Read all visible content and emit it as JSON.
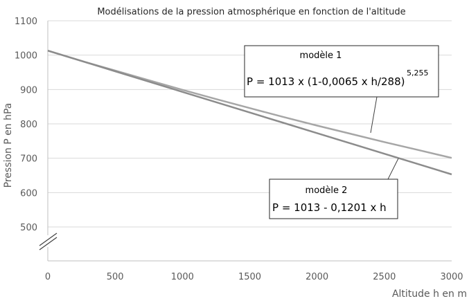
{
  "chart_data": {
    "type": "line",
    "title": "Modélisations de la pression atmosphérique en fonction de l'altitude",
    "xlabel": "Altitude h en m",
    "ylabel": "Pression P en hPa",
    "xlim": [
      0,
      3000
    ],
    "ylim": [
      450,
      1100
    ],
    "x_ticks": [
      0,
      500,
      1000,
      1500,
      2000,
      2500,
      3000
    ],
    "y_ticks": [
      500,
      600,
      700,
      800,
      900,
      1000,
      1100
    ],
    "grid": "horizontal",
    "axis_break": "y",
    "x": [
      0,
      250,
      500,
      750,
      1000,
      1250,
      1500,
      1750,
      2000,
      2250,
      2500,
      2750,
      3000
    ],
    "series": [
      {
        "name": "modèle 1",
        "values": [
          1013,
          983,
          955,
          927,
          899,
          872,
          846,
          820,
          795,
          771,
          747,
          724,
          701
        ],
        "color": "#a6a6a6"
      },
      {
        "name": "modèle 2",
        "values": [
          1013,
          983,
          953,
          923,
          893,
          863,
          833,
          803,
          773,
          743,
          713,
          683,
          653
        ],
        "color": "#8c8c8c"
      }
    ],
    "annotations": [
      {
        "label": "modèle 1",
        "formula": "P = 1013 x (1-0,0065 x h/288)",
        "exponent": "5,255",
        "points_to": "modèle 1"
      },
      {
        "label": "modèle 2",
        "formula": "P = 1013 - 0,1201 x h",
        "points_to": "modèle 2"
      }
    ]
  }
}
